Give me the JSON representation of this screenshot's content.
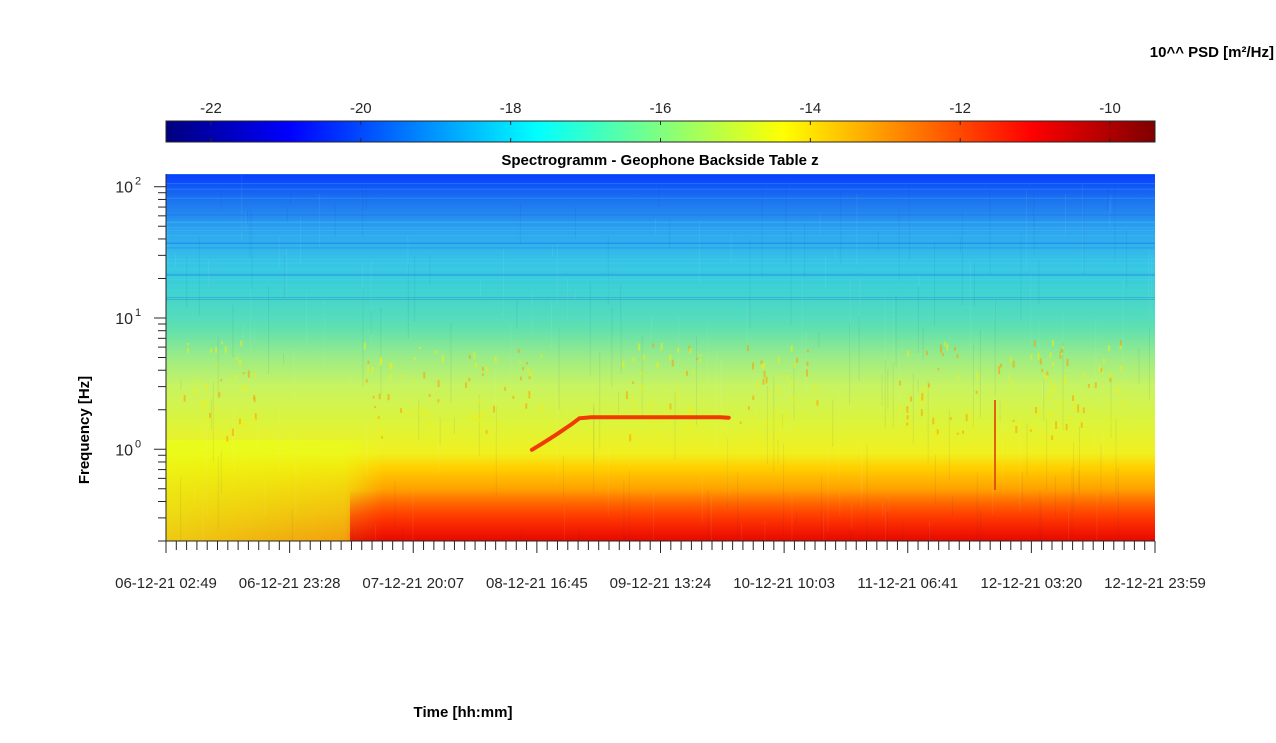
{
  "chart_data": {
    "type": "heatmap",
    "title": "Spectrogramm - Geophone Backside Table z",
    "xlabel": "Time [hh:mm]",
    "ylabel": "Frequency [Hz]",
    "colorbar": {
      "label": "10^^ PSD [m²/Hz]",
      "ticks": [
        "-22",
        "-20",
        "-18",
        "-16",
        "-14",
        "-12",
        "-10"
      ],
      "tick_values": [
        -22,
        -20,
        -18,
        -16,
        -14,
        -12,
        -10
      ],
      "range": [
        -22.6,
        -9.4
      ],
      "colormap": "jet",
      "position": "top"
    },
    "x_axis": {
      "type": "datetime",
      "range": [
        "06-12-21 02:49",
        "12-12-21 23:59"
      ],
      "tick_labels": [
        "06-12-21 02:49",
        "06-12-21 23:28",
        "07-12-21 20:07",
        "08-12-21 16:45",
        "09-12-21 13:24",
        "10-12-21 10:03",
        "11-12-21 06:41",
        "12-12-21 03:20",
        "12-12-21 23:59"
      ]
    },
    "y_axis": {
      "scale": "log",
      "range": [
        0.2,
        125
      ],
      "ticks": [
        1,
        10,
        100
      ],
      "tick_labels": [
        "10",
        "10",
        "10"
      ],
      "tick_exponents": [
        "0",
        "1",
        "2"
      ]
    },
    "features": [
      {
        "description": "high-PSD band (about -11 to -10) below about 0.6 Hz across all times, strongest from 07-12-21 to 12-12-21"
      },
      {
        "description": "mid-level band (about -14 to -13) between 1 Hz and 5 Hz, with bursts near 3 Hz"
      },
      {
        "description": "narrow tonal line rising from about 1.0 Hz at 08-12-21 16:00 to about 1.75 Hz at 08-12-21 23:00, then constant at about 1.75 Hz until 09-12-21 21:00"
      },
      {
        "description": "low PSD (about -19 to -21) above about 40 Hz"
      }
    ],
    "grid": false
  }
}
